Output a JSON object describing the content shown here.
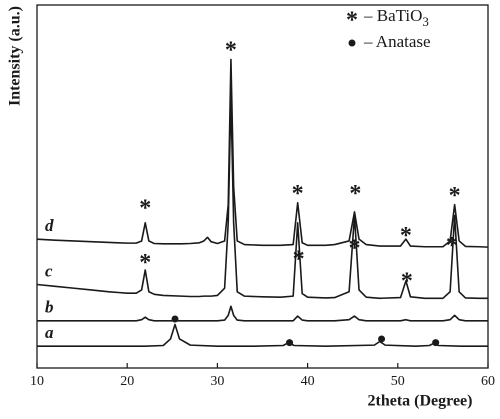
{
  "chart_data": {
    "type": "line",
    "xlabel": "2theta (Degree)",
    "ylabel": "Intensity (a.u.)",
    "xlim": [
      10,
      60
    ],
    "xticks": [
      10,
      20,
      30,
      40,
      50,
      60
    ],
    "ylim": [
      0,
      100
    ],
    "x": [
      10,
      12,
      14,
      16,
      18,
      19,
      20,
      21,
      21.6,
      22,
      22.4,
      23,
      24,
      26,
      27,
      28,
      28.5,
      28.9,
      29.3,
      30,
      30.8,
      31.2,
      31.5,
      31.8,
      32.2,
      33,
      35,
      37,
      38.4,
      38.9,
      39.4,
      40,
      42,
      43,
      44.6,
      45.2,
      45.7,
      46.5,
      48,
      50.3,
      50.9,
      51.4,
      53,
      55,
      55.8,
      56.3,
      56.8,
      57.5,
      59,
      60
    ],
    "series": [
      {
        "name": "a",
        "color": "#1a1a1a",
        "x": [
          10,
          14,
          18,
          22,
          24,
          24.8,
          25.3,
          25.8,
          27,
          30,
          34,
          37.3,
          37.9,
          38.5,
          42,
          47.4,
          48,
          48.6,
          52,
          53.5,
          54,
          54.5,
          57,
          60
        ],
        "values": [
          6,
          6,
          6,
          6,
          6.2,
          8,
          12,
          8,
          6.3,
          6,
          6,
          6.2,
          7,
          6.2,
          6,
          6.3,
          7.3,
          6.3,
          6,
          6.2,
          6.8,
          6.2,
          6,
          6
        ]
      },
      {
        "name": "b",
        "color": "#1a1a1a",
        "values": [
          13,
          13,
          13,
          13,
          13,
          13,
          13,
          13,
          13.3,
          14,
          13.3,
          13,
          13,
          13,
          13,
          13,
          13,
          13,
          13,
          13,
          13.2,
          14.5,
          17,
          14.5,
          13.2,
          13,
          13,
          13,
          13,
          14.3,
          13.2,
          13,
          13,
          13,
          13.3,
          14.3,
          13.3,
          13,
          13,
          13,
          13.3,
          13,
          13,
          13,
          13.3,
          14.5,
          13.3,
          13,
          13,
          13
        ]
      },
      {
        "name": "c",
        "color": "#1a1a1a",
        "values": [
          23,
          22.5,
          22,
          21.5,
          21,
          20.8,
          20.6,
          20.6,
          21.5,
          27,
          21,
          20.3,
          20,
          19.8,
          19.7,
          19.7,
          19.8,
          19.8,
          19.8,
          20,
          22,
          40,
          75,
          40,
          21,
          19.8,
          19.6,
          19.5,
          19.8,
          40,
          20.5,
          19.5,
          19.3,
          19.4,
          21,
          42,
          21.5,
          19.5,
          19.2,
          19.4,
          24,
          19.6,
          19.2,
          19.2,
          21,
          42,
          21,
          19.3,
          19.2,
          19.2
        ]
      },
      {
        "name": "d",
        "color": "#1a1a1a",
        "values": [
          35.5,
          35.2,
          35,
          34.8,
          34.6,
          34.5,
          34.4,
          34.4,
          35,
          40,
          35,
          34.3,
          34.2,
          34.2,
          34.3,
          34.5,
          35,
          36,
          34.8,
          34.3,
          35,
          45,
          85,
          50,
          35,
          34,
          33.8,
          33.8,
          34,
          45.5,
          34.5,
          33.8,
          33.8,
          34,
          35,
          43,
          35.5,
          34,
          33.6,
          33.6,
          35.5,
          33.6,
          33.4,
          33.4,
          35,
          45,
          35,
          33.5,
          33.4,
          33.3
        ]
      }
    ],
    "annotations": [
      {
        "text": "*",
        "x": 22,
        "y": 45
      },
      {
        "text": "*",
        "x": 31.5,
        "y": 88.5
      },
      {
        "text": "*",
        "x": 38.9,
        "y": 49
      },
      {
        "text": "*",
        "x": 45.3,
        "y": 49
      },
      {
        "text": "*",
        "x": 50.9,
        "y": 37.5
      },
      {
        "text": "*",
        "x": 56.3,
        "y": 48.5
      },
      {
        "text": "*",
        "x": 22,
        "y": 30
      },
      {
        "text": "*",
        "x": 39,
        "y": 31
      },
      {
        "text": "*",
        "x": 45.2,
        "y": 34
      },
      {
        "text": "*",
        "x": 51,
        "y": 25
      },
      {
        "text": "*",
        "x": 56,
        "y": 34.7
      }
    ],
    "anatase_markers": [
      {
        "x": 25.3,
        "y": 13.5
      },
      {
        "x": 38,
        "y": 7
      },
      {
        "x": 48.2,
        "y": 8
      },
      {
        "x": 54.2,
        "y": 7
      }
    ],
    "legend": [
      {
        "symbol": "*",
        "text": "– BaTiO",
        "subscript": "3"
      },
      {
        "text": "– Anatase"
      }
    ]
  }
}
